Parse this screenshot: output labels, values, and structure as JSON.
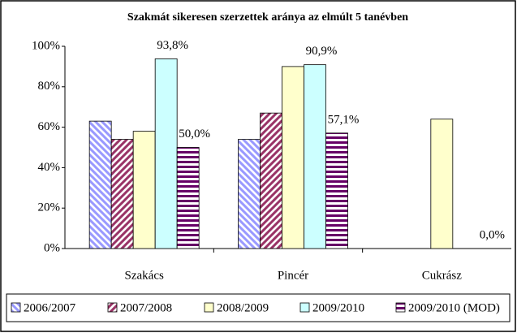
{
  "chart_data": {
    "type": "bar",
    "title": "Szakmát sikeresen szerzettek aránya az elmúlt 5 tanévben",
    "categories": [
      "Szakács",
      "Pincér",
      "Cukrász"
    ],
    "ylim": [
      0,
      100
    ],
    "yticks": [
      {
        "value": 0,
        "label": "0%"
      },
      {
        "value": 20,
        "label": "20%"
      },
      {
        "value": 40,
        "label": "40%"
      },
      {
        "value": 60,
        "label": "60%"
      },
      {
        "value": 80,
        "label": "80%"
      },
      {
        "value": 100,
        "label": "100%"
      }
    ],
    "legend": "bottom",
    "series": [
      {
        "name": "2006/2007",
        "color": "#9999ff",
        "pattern": "diagonal-down",
        "values": [
          63,
          54,
          null
        ]
      },
      {
        "name": "2007/2008",
        "color": "#993366",
        "pattern": "diagonal-up",
        "values": [
          54,
          67,
          null
        ]
      },
      {
        "name": "2008/2009",
        "color": "#ffffcc",
        "pattern": "solid",
        "values": [
          58,
          90,
          64
        ]
      },
      {
        "name": "2009/2010",
        "color": "#ccffff",
        "pattern": "solid",
        "values": [
          93.8,
          90.9,
          null
        ],
        "value_labels": [
          "93,8%",
          "90,9%",
          null
        ]
      },
      {
        "name": "2009/2010 (MOD)",
        "color": "#660066",
        "pattern": "horizontal",
        "values": [
          50.0,
          57.1,
          0.0
        ],
        "value_labels": [
          "50,0%",
          "57,1%",
          "0,0%"
        ]
      }
    ]
  }
}
